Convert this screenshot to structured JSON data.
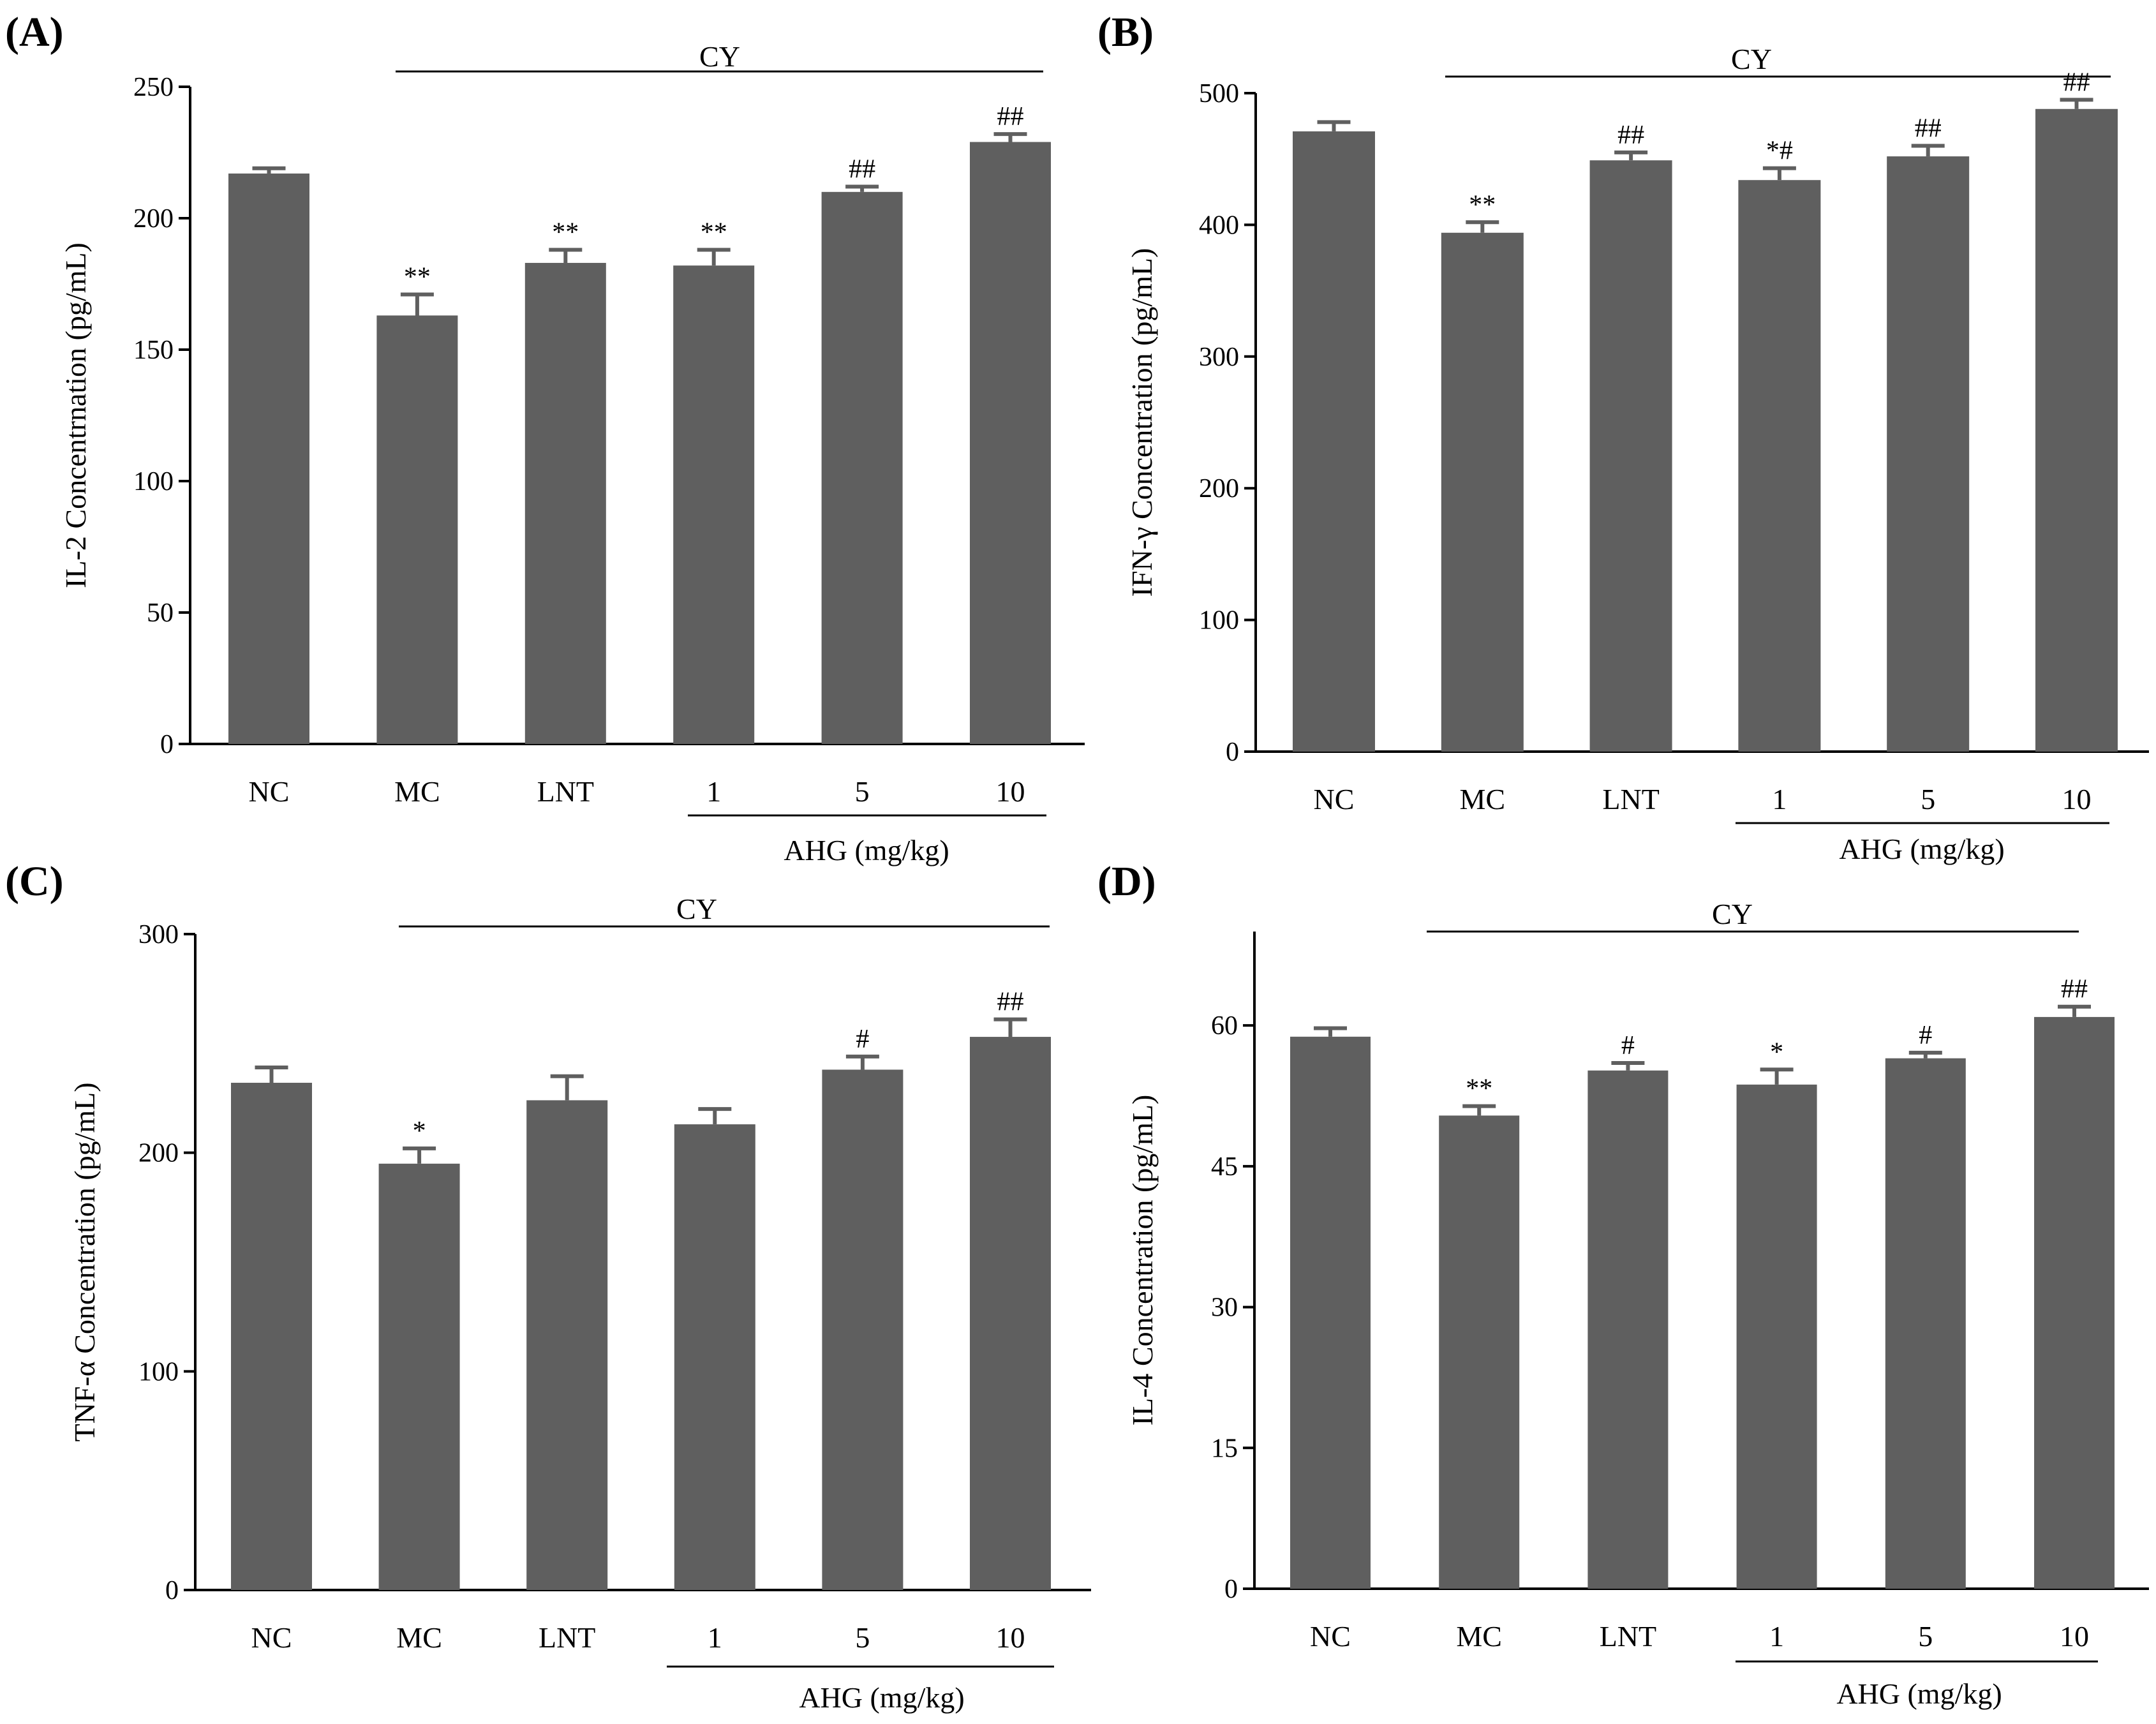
{
  "figure": {
    "bar_color": "#5f5f5f",
    "axis_color": "#000000"
  },
  "chart_data": [
    {
      "panel_label": "(A)",
      "type": "bar",
      "categories": [
        "NC",
        "MC",
        "LNT",
        "1",
        "5",
        "10"
      ],
      "values": [
        217,
        163,
        183,
        182,
        210,
        229
      ],
      "errors": [
        2,
        8,
        5,
        6,
        2,
        3
      ],
      "significance": [
        "",
        "**",
        "**",
        "**",
        "##",
        "##"
      ],
      "ylabel": "IL-2 Concentrnation (pg/mL)",
      "ylim": [
        0,
        250
      ],
      "yticks": [
        0,
        50,
        100,
        150,
        200,
        250
      ],
      "bracket_label": "CY",
      "group_label": "AHG (mg/kg)"
    },
    {
      "panel_label": "(B)",
      "type": "bar",
      "categories": [
        "NC",
        "MC",
        "LNT",
        "1",
        "5",
        "10"
      ],
      "values": [
        471,
        394,
        449,
        434,
        452,
        488
      ],
      "errors": [
        7,
        8,
        6,
        9,
        8,
        7
      ],
      "significance": [
        "",
        "**",
        "##",
        "*#",
        "##",
        "##"
      ],
      "ylabel": "IFN-γ  Concentration (pg/mL)",
      "ylim": [
        0,
        500
      ],
      "yticks": [
        0,
        100,
        200,
        300,
        400,
        500
      ],
      "bracket_label": "CY",
      "group_label": "AHG (mg/kg)"
    },
    {
      "panel_label": "(C)",
      "type": "bar",
      "categories": [
        "NC",
        "MC",
        "LNT",
        "1",
        "5",
        "10"
      ],
      "values": [
        232,
        195,
        224,
        213,
        238,
        253
      ],
      "errors": [
        7,
        7,
        11,
        7,
        6,
        8
      ],
      "significance": [
        "",
        "*",
        "",
        "",
        "#",
        "##"
      ],
      "ylabel": "TNF-α Concentration (pg/mL)",
      "ylim": [
        0,
        300
      ],
      "yticks": [
        0,
        100,
        200,
        300
      ],
      "bracket_label": "CY",
      "group_label": "AHG (mg/kg)"
    },
    {
      "panel_label": "(D)",
      "type": "bar",
      "categories": [
        "NC",
        "MC",
        "LNT",
        "1",
        "5",
        "10"
      ],
      "values": [
        58.8,
        50.4,
        55.2,
        53.7,
        56.5,
        60.9
      ],
      "errors": [
        0.9,
        1.0,
        0.8,
        1.6,
        0.6,
        1.1
      ],
      "significance": [
        "",
        "**",
        "#",
        "*",
        "#",
        "##"
      ],
      "ylabel": "IL-4 Concentration (pg/mL)",
      "ylim": [
        0,
        70
      ],
      "yticks": [
        0,
        15,
        30,
        45,
        60
      ],
      "bracket_label": "CY",
      "group_label": "AHG (mg/kg)"
    }
  ]
}
